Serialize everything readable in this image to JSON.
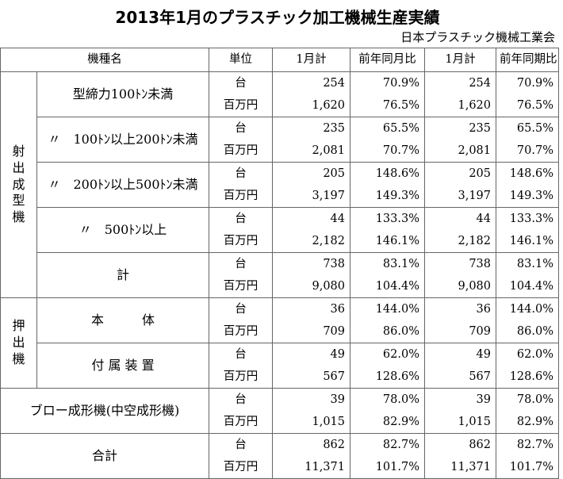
{
  "title": "2013年1月のプラスチック加工機械生産実績",
  "source": "日本プラスチック機械工業会",
  "columns": [
    "機種名",
    "単位",
    "1月計",
    "前年同月比",
    "1月計",
    "前年同期比"
  ],
  "categories": {
    "injection": "射出成型機",
    "extrusion": "押出機"
  },
  "units": {
    "count": "台",
    "value": "百万円"
  },
  "groups": [
    {
      "label": "型締力100ﾄﾝ未満",
      "rows": [
        [
          "254",
          "70.9%",
          "254",
          "70.9%"
        ],
        [
          "1,620",
          "76.5%",
          "1,620",
          "76.5%"
        ]
      ]
    },
    {
      "label": "〃　100ﾄﾝ以上200ﾄﾝ未満",
      "rows": [
        [
          "235",
          "65.5%",
          "235",
          "65.5%"
        ],
        [
          "2,081",
          "70.7%",
          "2,081",
          "70.7%"
        ]
      ]
    },
    {
      "label": "〃　200ﾄﾝ以上500ﾄﾝ未満",
      "rows": [
        [
          "205",
          "148.6%",
          "205",
          "148.6%"
        ],
        [
          "3,197",
          "149.3%",
          "3,197",
          "149.3%"
        ]
      ]
    },
    {
      "label": "〃　500ﾄﾝ以上",
      "rows": [
        [
          "44",
          "133.3%",
          "44",
          "133.3%"
        ],
        [
          "2,182",
          "146.1%",
          "2,182",
          "146.1%"
        ]
      ]
    },
    {
      "label": "計",
      "rows": [
        [
          "738",
          "83.1%",
          "738",
          "83.1%"
        ],
        [
          "9,080",
          "104.4%",
          "9,080",
          "104.4%"
        ]
      ]
    },
    {
      "label": "本　　　体",
      "rows": [
        [
          "36",
          "144.0%",
          "36",
          "144.0%"
        ],
        [
          "709",
          "86.0%",
          "709",
          "86.0%"
        ]
      ]
    },
    {
      "label": "付 属 装 置",
      "rows": [
        [
          "49",
          "62.0%",
          "49",
          "62.0%"
        ],
        [
          "567",
          "128.6%",
          "567",
          "128.6%"
        ]
      ]
    },
    {
      "label": "ブロー成形機(中空成形機)",
      "rows": [
        [
          "39",
          "78.0%",
          "39",
          "78.0%"
        ],
        [
          "1,015",
          "82.9%",
          "1,015",
          "82.9%"
        ]
      ]
    },
    {
      "label": "合計",
      "rows": [
        [
          "862",
          "82.7%",
          "862",
          "82.7%"
        ],
        [
          "11,371",
          "101.7%",
          "11,371",
          "101.7%"
        ]
      ]
    }
  ]
}
